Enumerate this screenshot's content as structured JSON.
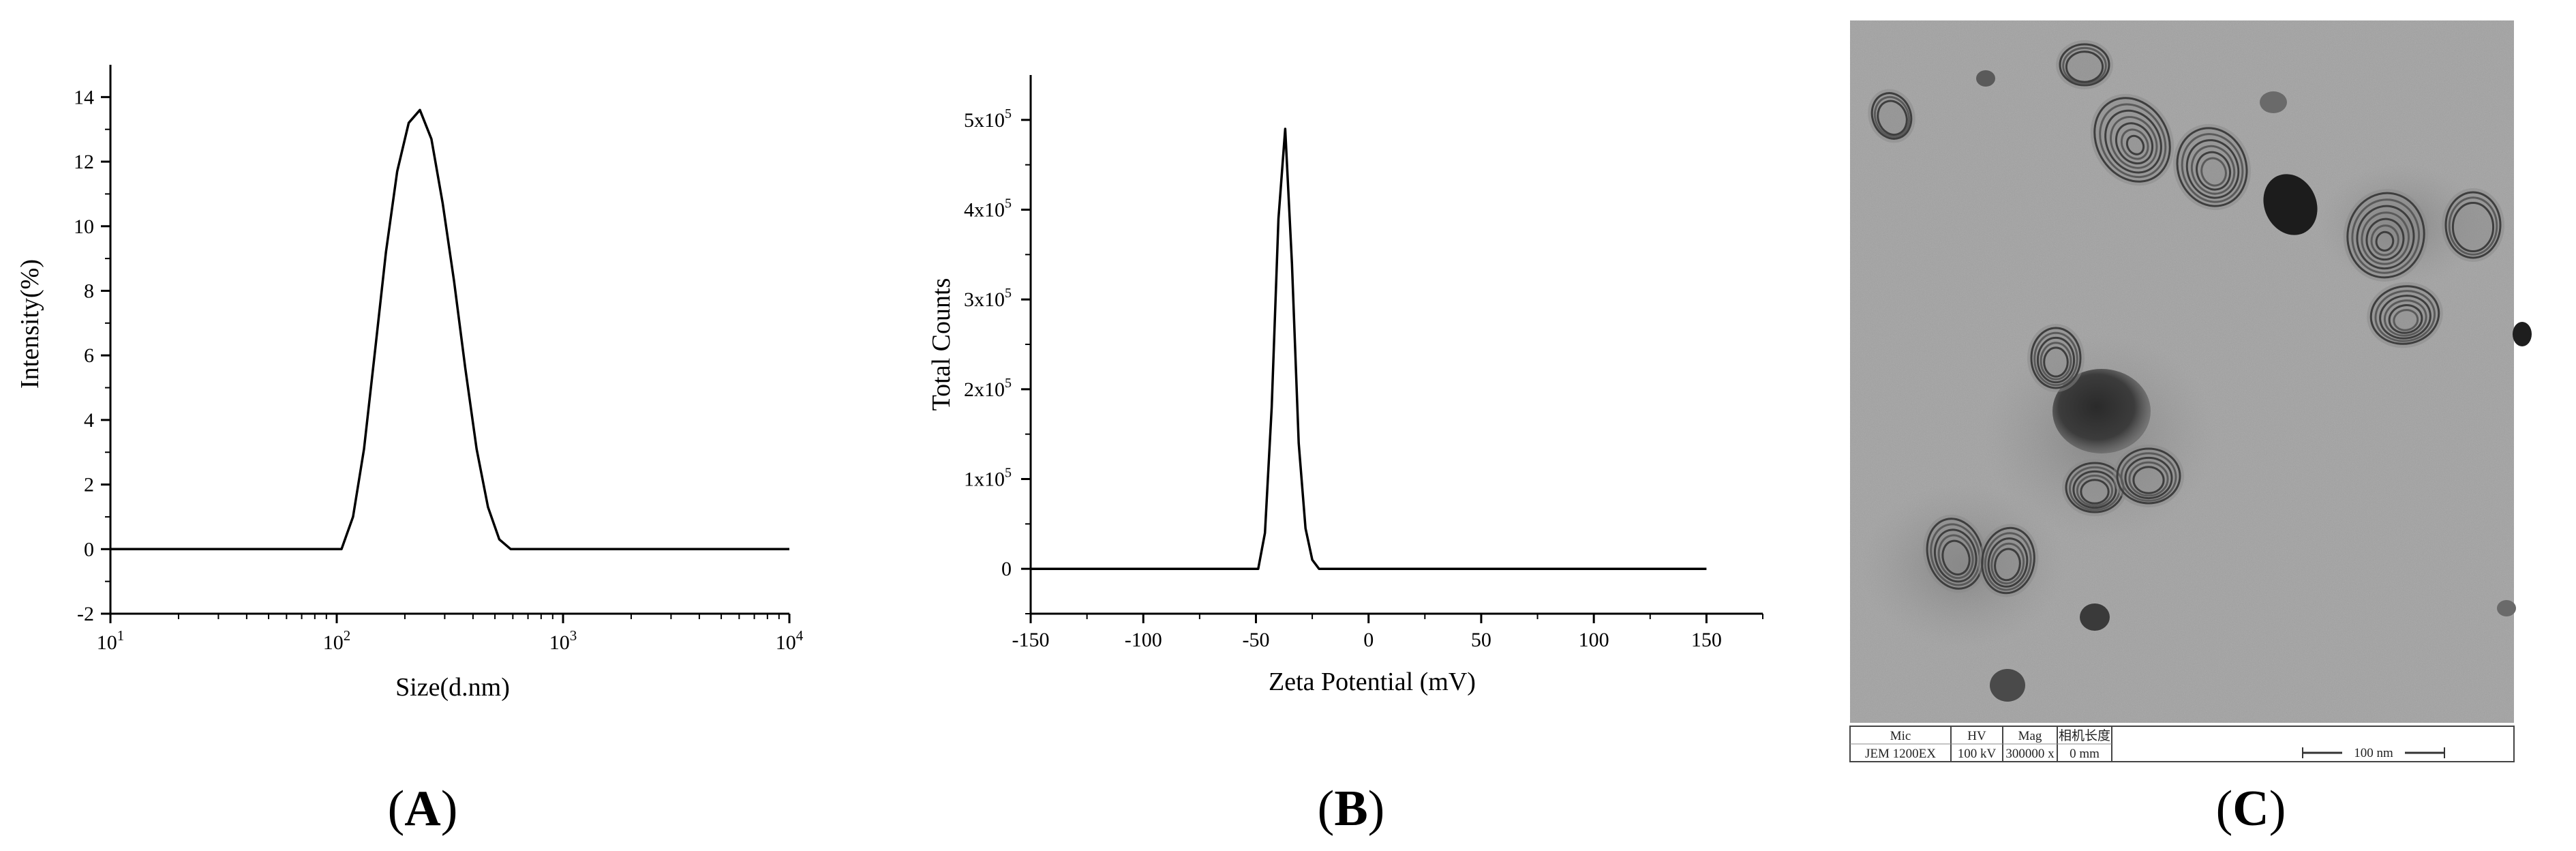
{
  "chart_data": [
    {
      "type": "line",
      "panel_label": "A",
      "xlabel": "Size(d.nm)",
      "ylabel": "Intensity(%)",
      "x_scale": "log",
      "xlim": [
        10,
        10000
      ],
      "ylim": [
        -2,
        15
      ],
      "x_ticks": [
        10,
        100,
        1000,
        10000
      ],
      "x_tick_labels": [
        {
          "base": "10",
          "exp": "1"
        },
        {
          "base": "10",
          "exp": "2"
        },
        {
          "base": "10",
          "exp": "3"
        },
        {
          "base": "10",
          "exp": "4"
        }
      ],
      "y_ticks": [
        -2,
        0,
        2,
        4,
        6,
        8,
        10,
        12,
        14
      ],
      "y_tick_labels": [
        "-2",
        "0",
        "2",
        "4",
        "6",
        "8",
        "10",
        "12",
        "14"
      ],
      "series": [
        {
          "x": [
            10,
            105,
            118,
            132,
            148,
            165,
            185,
            208,
            233,
            262,
            294,
            330,
            370,
            415,
            466,
            523,
            587,
            659,
            739,
            829,
            930,
            10000
          ],
          "y": [
            0,
            0,
            1.0,
            3.1,
            6.2,
            9.2,
            11.7,
            13.2,
            13.6,
            12.7,
            10.7,
            8.3,
            5.6,
            3.1,
            1.3,
            0.3,
            0,
            0,
            0,
            0,
            0,
            0
          ]
        }
      ],
      "grid": false,
      "line_color": "#000000"
    },
    {
      "type": "line",
      "panel_label": "B",
      "xlabel": "Zeta Potential (mV)",
      "ylabel": "Total Counts",
      "xlim": [
        -150,
        175
      ],
      "ylim": [
        -50000,
        550000
      ],
      "x_ticks": [
        -150,
        -100,
        -50,
        0,
        50,
        100,
        150
      ],
      "x_tick_labels": [
        "-150",
        "-100",
        "-50",
        "0",
        "50",
        "100",
        "150"
      ],
      "y_ticks": [
        0,
        100000,
        200000,
        300000,
        400000,
        500000
      ],
      "y_tick_labels": [
        {
          "base": "0",
          "exp": ""
        },
        {
          "base": "1x10",
          "exp": "5"
        },
        {
          "base": "2x10",
          "exp": "5"
        },
        {
          "base": "3x10",
          "exp": "5"
        },
        {
          "base": "4x10",
          "exp": "5"
        },
        {
          "base": "5x10",
          "exp": "5"
        }
      ],
      "series": [
        {
          "x": [
            -150,
            -49,
            -46,
            -43,
            -40,
            -37,
            -34,
            -31,
            -28,
            -25,
            -22,
            -19,
            150
          ],
          "y": [
            0,
            0,
            40000,
            180000,
            390000,
            490000,
            340000,
            140000,
            45000,
            10000,
            0,
            0,
            0
          ]
        }
      ],
      "grid": false,
      "line_color": "#000000"
    }
  ],
  "tem": {
    "panel_label": "C",
    "info_headers": [
      "Mic",
      "HV",
      "Mag",
      "相机长度"
    ],
    "info_values": [
      "JEM 1200EX",
      "100 kV",
      "300000 x",
      "0 mm"
    ],
    "scale_bar_label": "100 nm"
  }
}
